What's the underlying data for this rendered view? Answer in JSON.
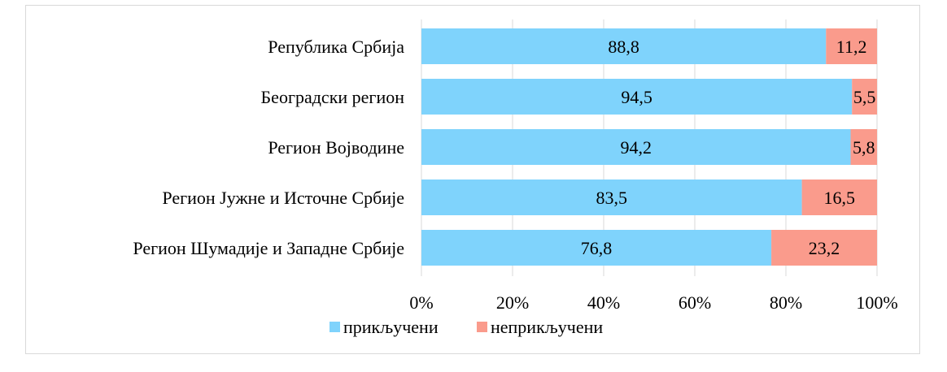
{
  "chart_data": {
    "type": "bar",
    "orientation": "horizontal",
    "stacked": true,
    "percent_stacked": true,
    "categories": [
      "Република Србија",
      "Београдски регион",
      "Регион Војводине",
      "Регион Јужне и Источне Србије",
      "Регион Шумадије и Западне Србије"
    ],
    "series": [
      {
        "name": "прикључени",
        "values": [
          88.8,
          94.5,
          94.2,
          83.5,
          76.8
        ],
        "labels": [
          "88,8",
          "94,5",
          "94,2",
          "83,5",
          "76,8"
        ],
        "color": "#7fd3fc"
      },
      {
        "name": "неприкључени",
        "values": [
          11.2,
          5.5,
          5.8,
          16.5,
          23.2
        ],
        "labels": [
          "11,2",
          "5,5",
          "5,8",
          "16,5",
          "23,2"
        ],
        "color": "#fa9b8c"
      }
    ],
    "xlim": [
      0,
      100
    ],
    "xticks": [
      "0%",
      "20%",
      "40%",
      "60%",
      "80%",
      "100%"
    ],
    "grid": "vertical",
    "gridline_color": "#d9d9d9",
    "legend": "bottom-center",
    "title": "",
    "xlabel": "",
    "ylabel": ""
  }
}
